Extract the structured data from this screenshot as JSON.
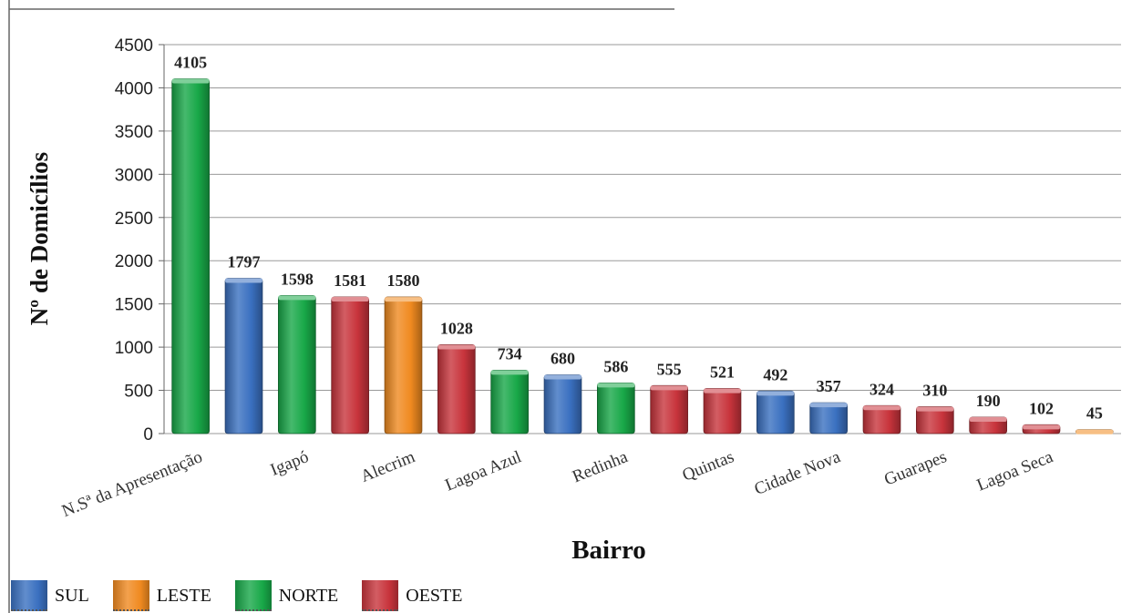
{
  "chart_data": {
    "type": "bar",
    "categories": [
      "N.Sª da Apresentação",
      "",
      "Igapó",
      "",
      "Alecrim",
      "",
      "Lagoa Azul",
      "",
      "Redinha",
      "",
      "Quintas",
      "",
      "Cidade Nova",
      "",
      "Guarapes",
      "",
      "Lagoa Seca",
      ""
    ],
    "values": [
      4105,
      1797,
      1598,
      1581,
      1580,
      1028,
      734,
      680,
      586,
      555,
      521,
      492,
      357,
      324,
      310,
      190,
      102,
      45
    ],
    "zones": [
      "NORTE",
      "SUL",
      "NORTE",
      "OESTE",
      "LESTE",
      "OESTE",
      "NORTE",
      "SUL",
      "NORTE",
      "OESTE",
      "OESTE",
      "SUL",
      "SUL",
      "OESTE",
      "OESTE",
      "OESTE",
      "OESTE",
      "LESTE"
    ],
    "xlabel": "Bairro",
    "ylabel": "Nº de Domicílios",
    "ylim": [
      0,
      4500
    ],
    "yticks": [
      0,
      500,
      1000,
      1500,
      2000,
      2500,
      3000,
      3500,
      4000,
      4500
    ],
    "grid": true,
    "legend_position": "bottom-left"
  },
  "legend": [
    {
      "label": "SUL",
      "zone": "SUL"
    },
    {
      "label": "LESTE",
      "zone": "LESTE"
    },
    {
      "label": "NORTE",
      "zone": "NORTE"
    },
    {
      "label": "OESTE",
      "zone": "OESTE"
    }
  ],
  "colors": {
    "SUL": "#3a70c0",
    "LESTE": "#f08a20",
    "NORTE": "#18a848",
    "OESTE": "#c8343c",
    "grid": "#9a9a9a"
  }
}
